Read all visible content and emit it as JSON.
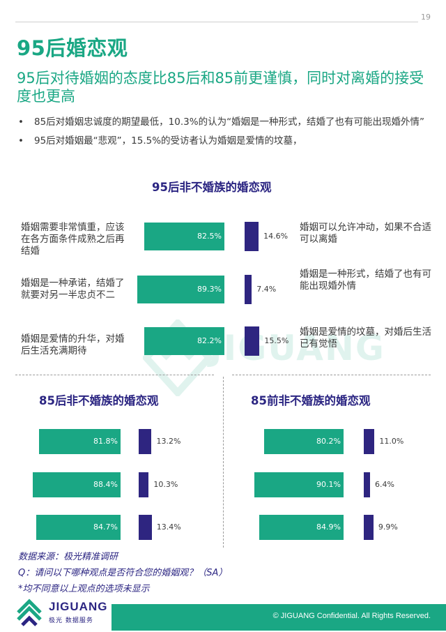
{
  "page_number": "19",
  "title": "95后婚恋观",
  "subtitle": "95后对待婚姻的态度比85后和85前更谨慎，同时对离婚的接受度也更高",
  "bullets": [
    {
      "dot": "•",
      "text": "85后对婚姻忠诚度的期望最低，10.3%的认为“婚姻是一种形式，结婚了也有可能出现婚外情”"
    },
    {
      "dot": "•",
      "text": "95后对婚姻最“悲观”，15.5%的受访者认为婚姻是爱情的坟墓，"
    }
  ],
  "chart_data": [
    {
      "type": "bar",
      "title": "95后非不婚族的婚恋观",
      "left_labels": [
        "婚姻需要非常慎重，应该在各方面条件成熟之后再结婚",
        "婚姻是一种承诺，结婚了就要对另一半忠贞不二",
        "婚姻是爱情的升华，对婚后生活充满期待"
      ],
      "right_labels": [
        "婚姻可以允许冲动，如果不合适可以离婚",
        "婚姻是一种形式，结婚了也有可能出现婚外情",
        "婚姻是爱情的坟墓，对婚后生活已有觉悟"
      ],
      "left_values": [
        82.5,
        89.3,
        82.2
      ],
      "right_values": [
        14.6,
        7.4,
        15.5
      ],
      "left_value_labels": [
        "82.5%",
        "89.3%",
        "82.2%"
      ],
      "right_value_labels": [
        "14.6%",
        "7.4%",
        "15.5%"
      ],
      "left_color": "#1aa784",
      "right_color": "#2e2580"
    },
    {
      "type": "bar",
      "title": "85后非不婚族的婚恋观",
      "left_values": [
        81.8,
        88.4,
        84.7
      ],
      "right_values": [
        13.2,
        10.3,
        13.4
      ],
      "left_value_labels": [
        "81.8%",
        "88.4%",
        "84.7%"
      ],
      "right_value_labels": [
        "13.2%",
        "10.3%",
        "13.4%"
      ],
      "left_color": "#1aa784",
      "right_color": "#2e2580"
    },
    {
      "type": "bar",
      "title": "85前非不婚族的婚恋观",
      "left_values": [
        80.2,
        90.1,
        84.9
      ],
      "right_values": [
        11.0,
        6.4,
        9.9
      ],
      "left_value_labels": [
        "80.2%",
        "90.1%",
        "84.9%"
      ],
      "right_value_labels": [
        "11.0%",
        "6.4%",
        "9.9%"
      ],
      "left_color": "#1aa784",
      "right_color": "#2e2580"
    }
  ],
  "notes": {
    "source": "数据来源：极光精准调研",
    "question": "Q：请问以下哪种观点是否符合您的婚姻观？（SA）",
    "footnote": "*均不同意以上观点的选项未显示"
  },
  "watermark": "JIGUANG",
  "footer": {
    "logo_name": "JIGUANG",
    "logo_sub": "极光 数据服务",
    "copyright": "© JIGUANG  Confidential. All Rights Reserved."
  },
  "colors": {
    "accent": "#1aa784",
    "secondary": "#2b2582"
  }
}
